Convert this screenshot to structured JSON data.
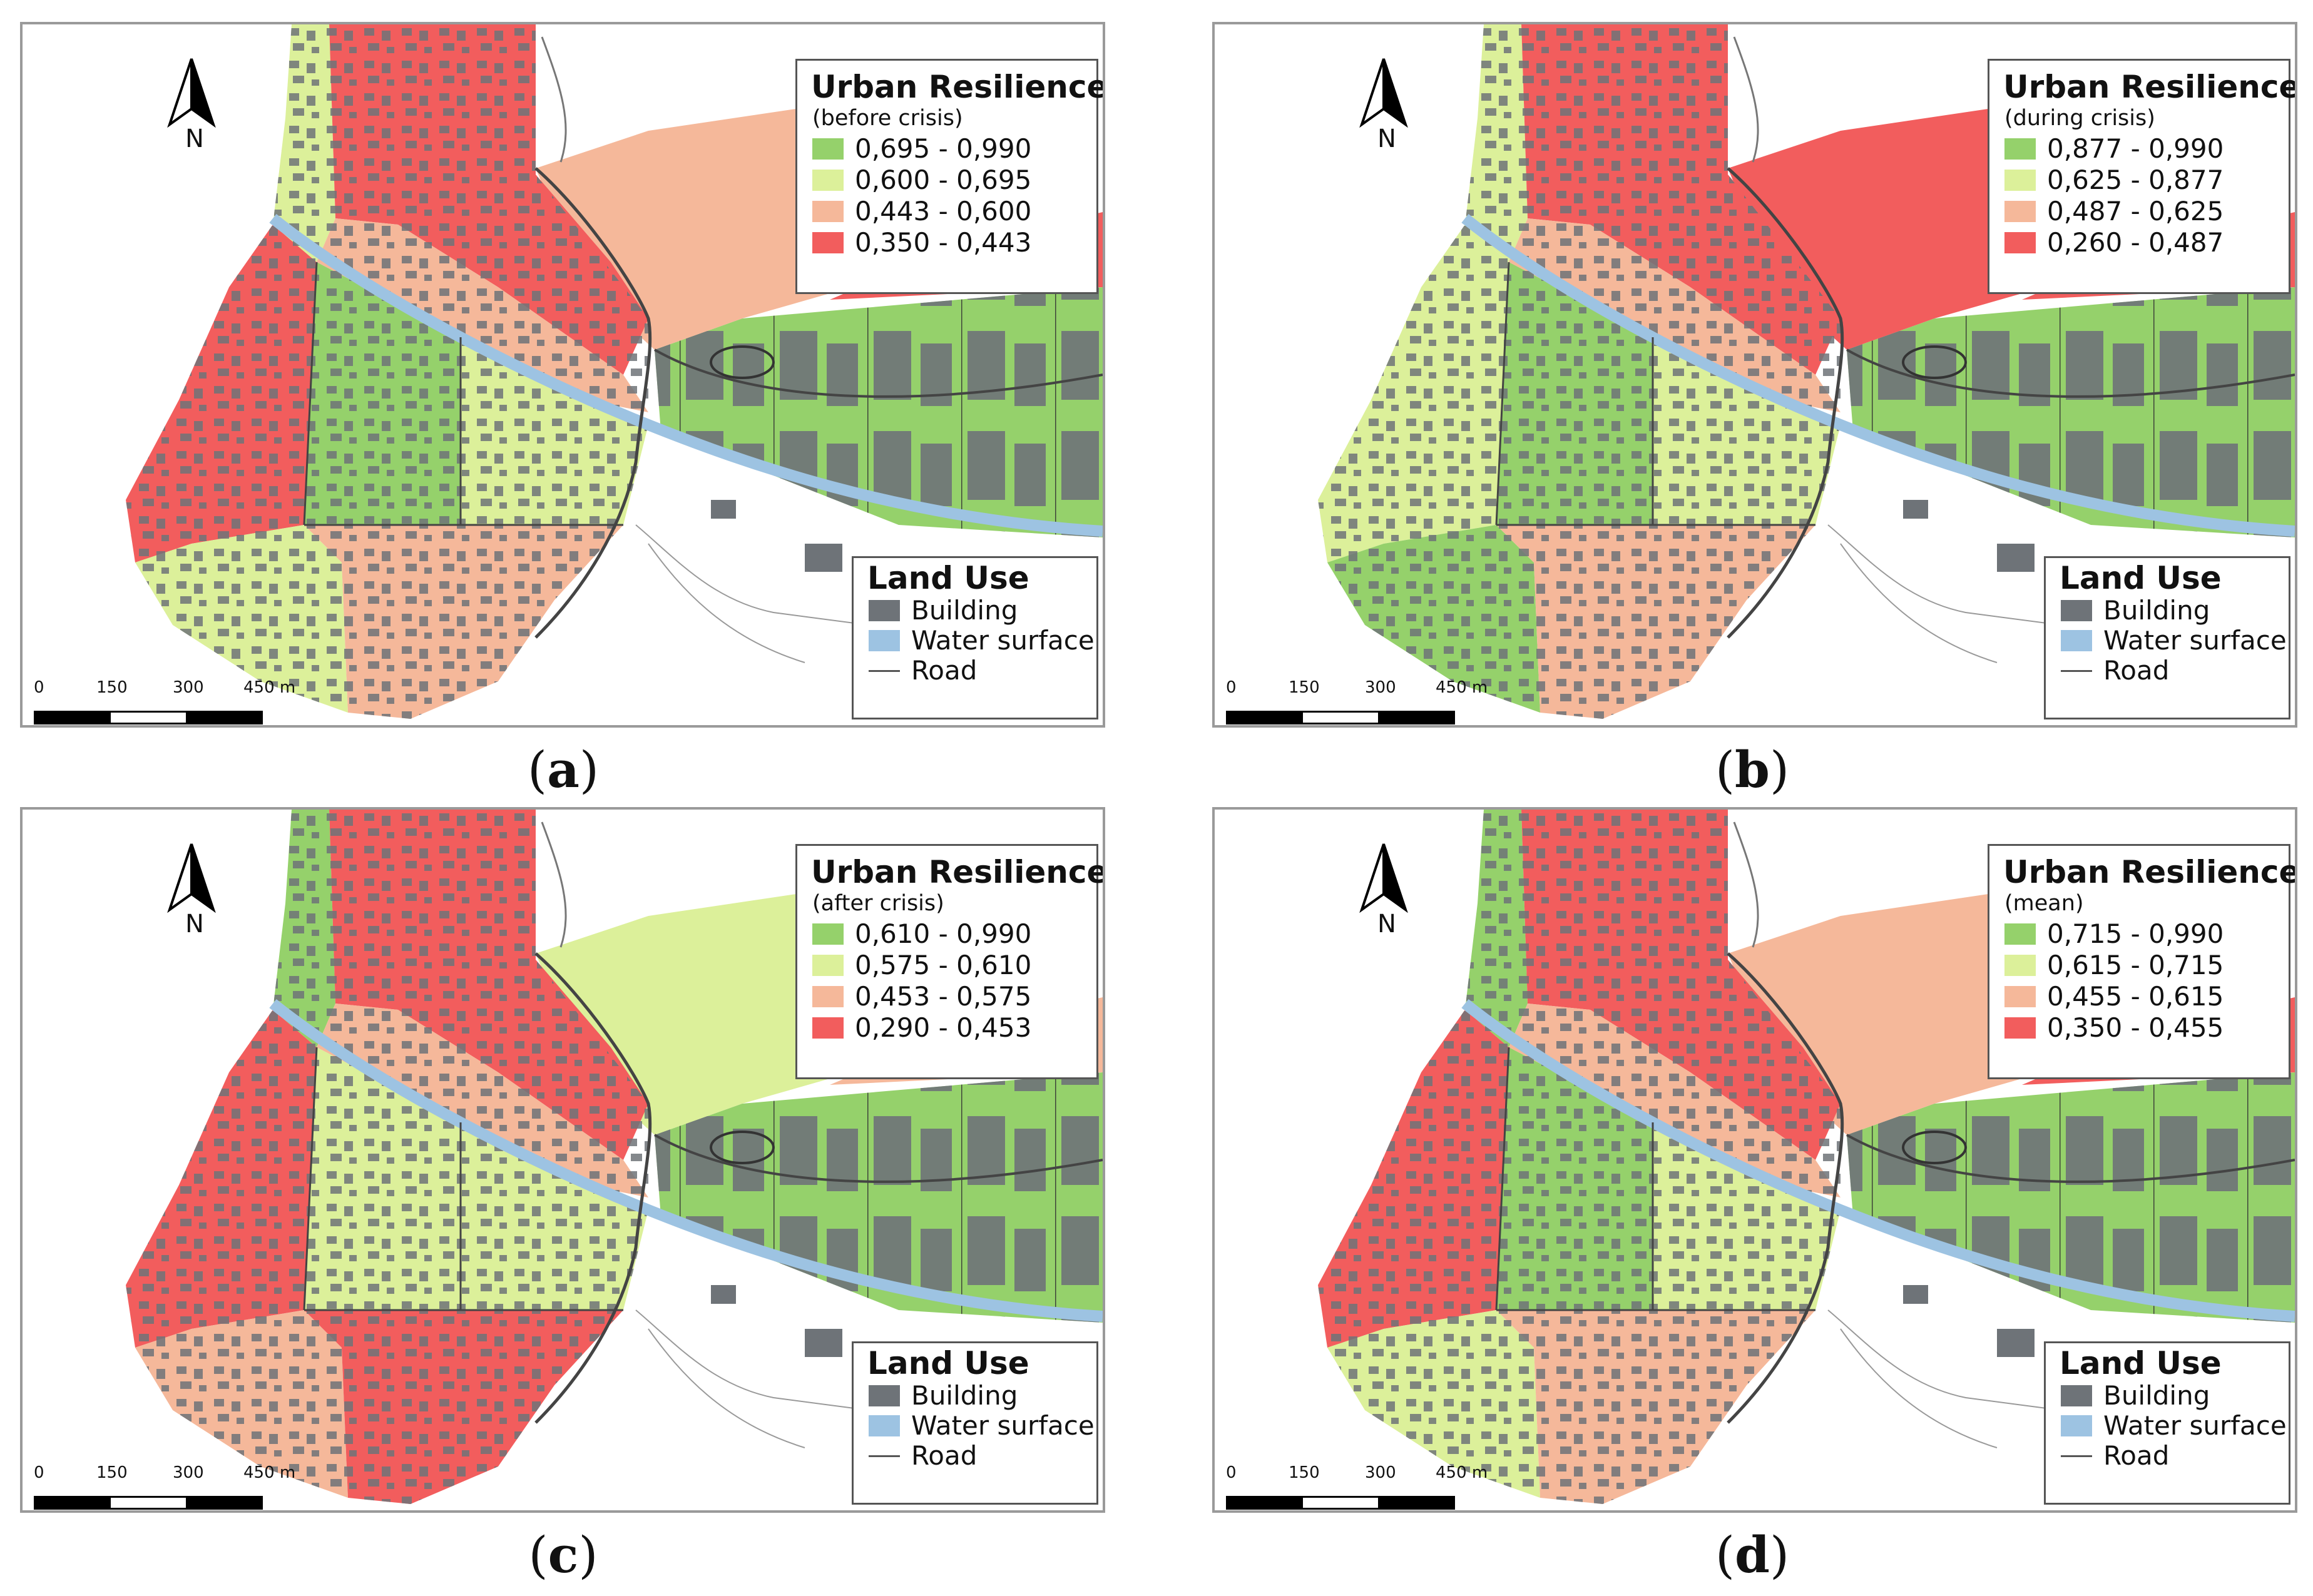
{
  "colors": {
    "class_high": "#95d16b",
    "class_midhigh": "#dcf09a",
    "class_midlow": "#f5b89a",
    "class_low": "#f25d5d",
    "building": "#6e7378",
    "water": "#9dc3e2",
    "road": "#555555"
  },
  "panels": [
    {
      "caption_letter": "a",
      "legend": {
        "title": "Urban Resilience",
        "subtitle": "(before crisis)",
        "classes": [
          "0,695 - 0,990",
          "0,600 - 0,695",
          "0,443 - 0,600",
          "0,350 - 0,443"
        ]
      }
    },
    {
      "caption_letter": "b",
      "legend": {
        "title": "Urban Resilience",
        "subtitle": "(during crisis)",
        "classes": [
          "0,877 - 0,990",
          "0,625 - 0,877",
          "0,487 - 0,625",
          "0,260 - 0,487"
        ]
      }
    },
    {
      "caption_letter": "c",
      "legend": {
        "title": "Urban Resilience",
        "subtitle": "(after crisis)",
        "classes": [
          "0,610 - 0,990",
          "0,575 - 0,610",
          "0,453 - 0,575",
          "0,290 - 0,453"
        ]
      }
    },
    {
      "caption_letter": "d",
      "legend": {
        "title": "Urban Resilience",
        "subtitle": "(mean)",
        "classes": [
          "0,715 - 0,990",
          "0,615 - 0,715",
          "0,455 - 0,615",
          "0,350 - 0,455"
        ]
      }
    }
  ],
  "land_use": {
    "title": "Land Use",
    "items": [
      "Building",
      "Water surface",
      "Road"
    ]
  },
  "north_label": "N",
  "scale": {
    "ticks": [
      "0",
      "150",
      "300",
      "450 m"
    ]
  }
}
